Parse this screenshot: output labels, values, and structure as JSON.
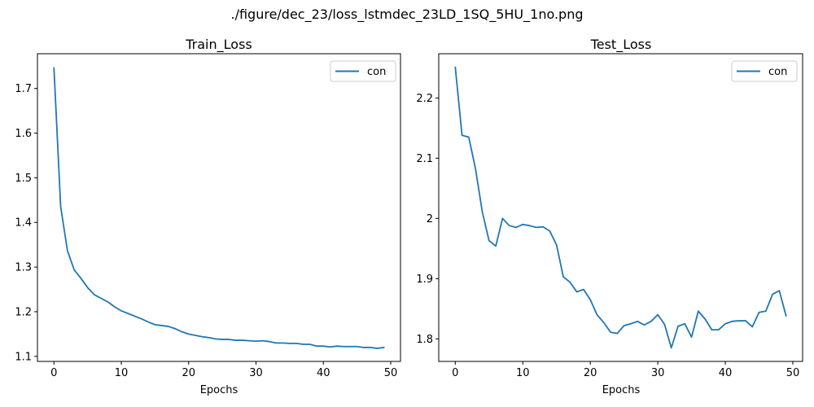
{
  "suptitle": "./figure/dec_23/loss_lstmdec_23LD_1SQ_5HU_1no.png",
  "colors": {
    "series": "#1f77b4",
    "axis": "#000000",
    "legend_border": "#cccccc"
  },
  "chart_data": [
    {
      "type": "line",
      "title": "Train_Loss",
      "xlabel": "Epochs",
      "ylabel": "",
      "xlim": [
        -2.45,
        51.45
      ],
      "ylim": [
        1.0887,
        1.7778
      ],
      "xticks": [
        0,
        10,
        20,
        30,
        40,
        50
      ],
      "yticks": [
        1.1,
        1.2,
        1.3,
        1.4,
        1.5,
        1.6,
        1.7
      ],
      "grid": false,
      "legend": "top-right",
      "series": [
        {
          "name": "con",
          "x": [
            0,
            1,
            2,
            3,
            4,
            5,
            6,
            7,
            8,
            9,
            10,
            11,
            12,
            13,
            14,
            15,
            16,
            17,
            18,
            19,
            20,
            21,
            22,
            23,
            24,
            25,
            26,
            27,
            28,
            29,
            30,
            31,
            32,
            33,
            34,
            35,
            36,
            37,
            38,
            39,
            40,
            41,
            42,
            43,
            44,
            45,
            46,
            47,
            48,
            49
          ],
          "values": [
            1.746,
            1.435,
            1.337,
            1.294,
            1.275,
            1.254,
            1.238,
            1.23,
            1.222,
            1.211,
            1.202,
            1.196,
            1.19,
            1.184,
            1.177,
            1.171,
            1.169,
            1.167,
            1.162,
            1.155,
            1.15,
            1.147,
            1.144,
            1.142,
            1.139,
            1.138,
            1.138,
            1.136,
            1.136,
            1.135,
            1.134,
            1.135,
            1.133,
            1.13,
            1.13,
            1.129,
            1.129,
            1.127,
            1.127,
            1.123,
            1.123,
            1.121,
            1.123,
            1.122,
            1.122,
            1.122,
            1.12,
            1.12,
            1.118,
            1.12
          ]
        }
      ]
    },
    {
      "type": "line",
      "title": "Test_Loss",
      "xlabel": "Epochs",
      "ylabel": "",
      "xlim": [
        -2.45,
        51.45
      ],
      "ylim": [
        1.7625,
        2.2735
      ],
      "xticks": [
        0,
        10,
        20,
        30,
        40,
        50
      ],
      "yticks": [
        1.8,
        1.9,
        2.0,
        2.1,
        2.2
      ],
      "grid": false,
      "legend": "top-right",
      "series": [
        {
          "name": "con",
          "x": [
            0,
            1,
            2,
            3,
            4,
            5,
            6,
            7,
            8,
            9,
            10,
            11,
            12,
            13,
            14,
            15,
            16,
            17,
            18,
            19,
            20,
            21,
            22,
            23,
            24,
            25,
            26,
            27,
            28,
            29,
            30,
            31,
            32,
            33,
            34,
            35,
            36,
            37,
            38,
            39,
            40,
            41,
            42,
            43,
            44,
            45,
            46,
            47,
            48,
            49
          ],
          "values": [
            2.251,
            2.138,
            2.135,
            2.082,
            2.011,
            1.963,
            1.954,
            2.0,
            1.988,
            1.985,
            1.99,
            1.988,
            1.985,
            1.986,
            1.979,
            1.956,
            1.903,
            1.894,
            1.878,
            1.882,
            1.865,
            1.84,
            1.827,
            1.811,
            1.809,
            1.822,
            1.825,
            1.829,
            1.823,
            1.829,
            1.84,
            1.824,
            1.785,
            1.821,
            1.825,
            1.803,
            1.846,
            1.833,
            1.815,
            1.815,
            1.825,
            1.829,
            1.83,
            1.83,
            1.82,
            1.844,
            1.846,
            1.874,
            1.88,
            1.838
          ]
        }
      ]
    }
  ]
}
